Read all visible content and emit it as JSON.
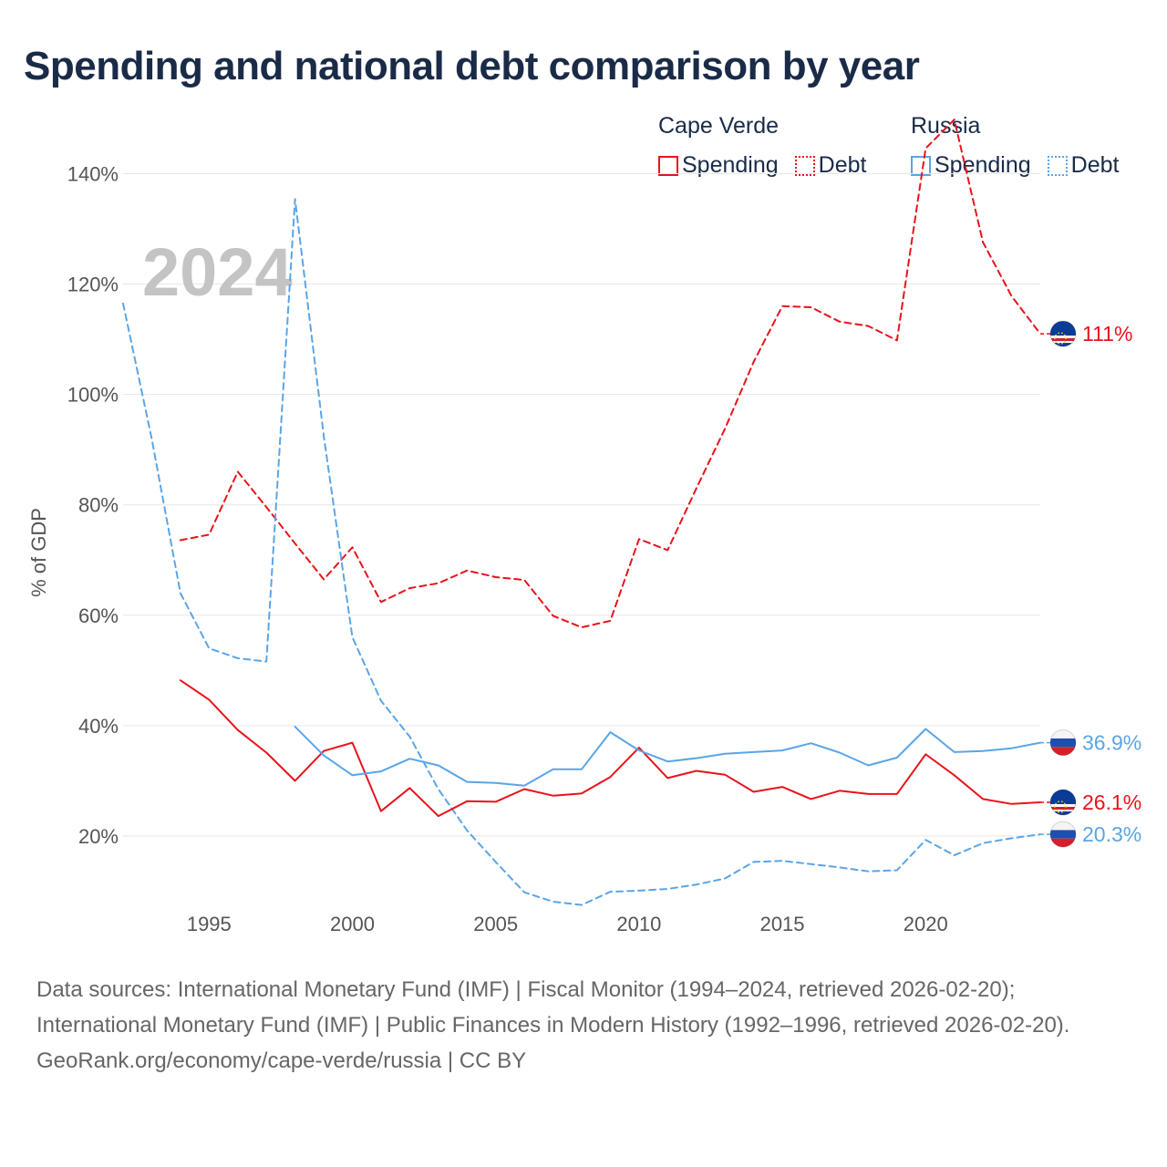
{
  "title": "Spending and national debt comparison by year",
  "legend": {
    "groups": [
      {
        "name": "Cape Verde",
        "color": "#e8131b",
        "items": [
          {
            "label": "Spending",
            "style": "solid"
          },
          {
            "label": "Debt",
            "style": "dotted"
          }
        ]
      },
      {
        "name": "Russia",
        "color": "#5aa5e6",
        "items": [
          {
            "label": "Spending",
            "style": "solid"
          },
          {
            "label": "Debt",
            "style": "dotted"
          }
        ]
      }
    ]
  },
  "footer": {
    "sources": "Data sources: International Monetary Fund (IMF) | Fiscal Monitor (1994–2024, retrieved 2026-02-20); International Monetary Fund (IMF) | Public Finances in Modern History (1992–1996, retrieved 2026-02-20).",
    "credit": "GeoRank.org/economy/cape-verde/russia | CC BY"
  },
  "chart_data": {
    "type": "line",
    "title": "Spending and national debt comparison by year",
    "year_label": "2024",
    "ylabel": "% of GDP",
    "xlabel": "",
    "xlim": [
      1992,
      2024
    ],
    "ylim": [
      0,
      150
    ],
    "x_ticks": [
      {
        "value": 1995,
        "label": "1995"
      },
      {
        "value": 2000,
        "label": "2000"
      },
      {
        "value": 2005,
        "label": "2005"
      },
      {
        "value": 2010,
        "label": "2010"
      },
      {
        "value": 2015,
        "label": "2015"
      },
      {
        "value": 2020,
        "label": "2020"
      }
    ],
    "y_ticks": [
      {
        "value": 20,
        "label": "20%"
      },
      {
        "value": 40,
        "label": "40%"
      },
      {
        "value": 60,
        "label": "60%"
      },
      {
        "value": 80,
        "label": "80%"
      },
      {
        "value": 100,
        "label": "100%"
      },
      {
        "value": 120,
        "label": "120%"
      },
      {
        "value": 140,
        "label": "140%"
      }
    ],
    "grid": true,
    "series": [
      {
        "name": "Cape Verde Debt",
        "country": "Cape Verde",
        "color": "#e8131b",
        "dashed": true,
        "end_label": "111%",
        "flag": "cape-verde",
        "points": [
          [
            1994,
            73.6
          ],
          [
            1995,
            74.6
          ],
          [
            1996,
            86
          ],
          [
            1997,
            79.6
          ],
          [
            1998,
            73
          ],
          [
            1999,
            66.5
          ],
          [
            2000,
            72.3
          ],
          [
            2001,
            62.4
          ],
          [
            2002,
            64.9
          ],
          [
            2003,
            65.8
          ],
          [
            2004,
            68.1
          ],
          [
            2005,
            66.9
          ],
          [
            2006,
            66.4
          ],
          [
            2007,
            59.9
          ],
          [
            2008,
            57.8
          ],
          [
            2009,
            59
          ],
          [
            2010,
            73.8
          ],
          [
            2011,
            71.8
          ],
          [
            2012,
            83
          ],
          [
            2013,
            93.8
          ],
          [
            2014,
            105.9
          ],
          [
            2015,
            116
          ],
          [
            2016,
            115.8
          ],
          [
            2017,
            113.2
          ],
          [
            2018,
            112.4
          ],
          [
            2019,
            109.8
          ],
          [
            2020,
            144.6
          ],
          [
            2021,
            149.8
          ],
          [
            2022,
            127.6
          ],
          [
            2023,
            117.8
          ],
          [
            2024,
            111
          ]
        ]
      },
      {
        "name": "Russia Debt",
        "country": "Russia",
        "color": "#5aa5e6",
        "dashed": true,
        "end_label": "20.3%",
        "flag": "russia",
        "points": [
          [
            1992,
            116.5
          ],
          [
            1993,
            92
          ],
          [
            1994,
            64
          ],
          [
            1995,
            54
          ],
          [
            1996,
            52.2
          ],
          [
            1997,
            51.6
          ],
          [
            1998,
            135.4
          ],
          [
            1999,
            92.5
          ],
          [
            2000,
            56
          ],
          [
            2001,
            44.5
          ],
          [
            2002,
            38
          ],
          [
            2003,
            28.5
          ],
          [
            2004,
            21
          ],
          [
            2005,
            15.3
          ],
          [
            2006,
            9.8
          ],
          [
            2007,
            8.1
          ],
          [
            2008,
            7.5
          ],
          [
            2009,
            9.9
          ],
          [
            2010,
            10.1
          ],
          [
            2011,
            10.4
          ],
          [
            2012,
            11.2
          ],
          [
            2013,
            12.3
          ],
          [
            2014,
            15.3
          ],
          [
            2015,
            15.5
          ],
          [
            2016,
            14.9
          ],
          [
            2017,
            14.3
          ],
          [
            2018,
            13.6
          ],
          [
            2019,
            13.8
          ],
          [
            2020,
            19.3
          ],
          [
            2021,
            16.5
          ],
          [
            2022,
            18.7
          ],
          [
            2023,
            19.6
          ],
          [
            2024,
            20.3
          ]
        ]
      },
      {
        "name": "Cape Verde Spending",
        "country": "Cape Verde",
        "color": "#e8131b",
        "dashed": false,
        "end_label": "26.1%",
        "flag": "cape-verde",
        "points": [
          [
            1994,
            48.2
          ],
          [
            1995,
            44.7
          ],
          [
            1996,
            39.2
          ],
          [
            1997,
            35.1
          ],
          [
            1998,
            30
          ],
          [
            1999,
            35.4
          ],
          [
            2000,
            36.9
          ],
          [
            2001,
            24.5
          ],
          [
            2002,
            28.7
          ],
          [
            2003,
            23.6
          ],
          [
            2004,
            26.3
          ],
          [
            2005,
            26.2
          ],
          [
            2006,
            28.5
          ],
          [
            2007,
            27.3
          ],
          [
            2008,
            27.7
          ],
          [
            2009,
            30.7
          ],
          [
            2010,
            36
          ],
          [
            2011,
            30.5
          ],
          [
            2012,
            31.8
          ],
          [
            2013,
            31.1
          ],
          [
            2014,
            28
          ],
          [
            2015,
            28.9
          ],
          [
            2016,
            26.7
          ],
          [
            2017,
            28.2
          ],
          [
            2018,
            27.6
          ],
          [
            2019,
            27.6
          ],
          [
            2020,
            34.8
          ],
          [
            2021,
            31
          ],
          [
            2022,
            26.7
          ],
          [
            2023,
            25.8
          ],
          [
            2024,
            26.1
          ]
        ]
      },
      {
        "name": "Russia Spending",
        "country": "Russia",
        "color": "#5aa5e6",
        "dashed": false,
        "end_label": "36.9%",
        "flag": "russia",
        "points": [
          [
            1998,
            39.8
          ],
          [
            1999,
            34.6
          ],
          [
            2000,
            31
          ],
          [
            2001,
            31.7
          ],
          [
            2002,
            34
          ],
          [
            2003,
            32.8
          ],
          [
            2004,
            29.8
          ],
          [
            2005,
            29.6
          ],
          [
            2006,
            29.1
          ],
          [
            2007,
            32.1
          ],
          [
            2008,
            32.1
          ],
          [
            2009,
            38.8
          ],
          [
            2010,
            35.5
          ],
          [
            2011,
            33.5
          ],
          [
            2012,
            34.1
          ],
          [
            2013,
            34.9
          ],
          [
            2014,
            35.2
          ],
          [
            2015,
            35.5
          ],
          [
            2016,
            36.8
          ],
          [
            2017,
            35.1
          ],
          [
            2018,
            32.8
          ],
          [
            2019,
            34.2
          ],
          [
            2020,
            39.4
          ],
          [
            2021,
            35.2
          ],
          [
            2022,
            35.4
          ],
          [
            2023,
            35.9
          ],
          [
            2024,
            36.9
          ]
        ]
      }
    ]
  }
}
